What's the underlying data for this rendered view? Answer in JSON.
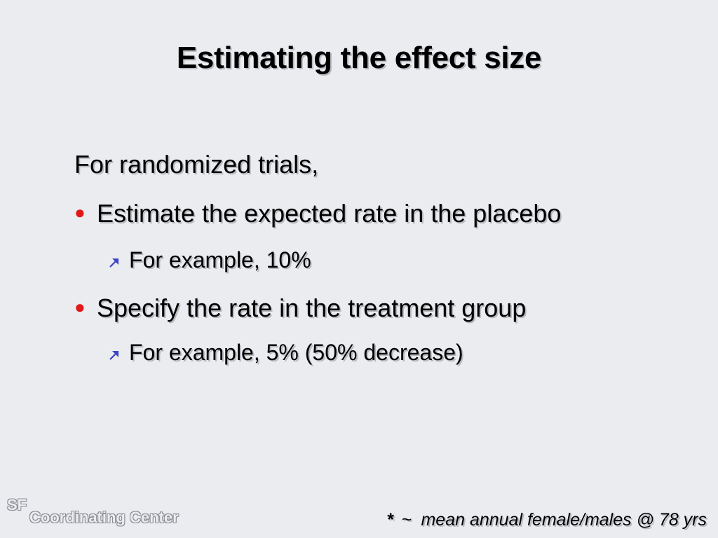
{
  "slide": {
    "title": "Estimating the effect size",
    "intro": "For randomized trials,",
    "bullets": [
      {
        "text": "Estimate the expected rate in the placebo",
        "sub": "For example, 10%"
      },
      {
        "text": "Specify the rate in the treatment group",
        "sub": "For example, 5%  (50% decrease)"
      }
    ],
    "logo": {
      "line1": "SF",
      "line2": "Coordinating Center"
    },
    "footnote": {
      "star": "*",
      "tilde": "~",
      "text": "mean annual female/males @ 78 yrs"
    }
  },
  "colors": {
    "background": "#ebecef",
    "bullet": "#e01818",
    "sub_arrow": "#3b44c8"
  },
  "icons": {
    "bullet": "red-dot-bullet-icon",
    "sub_bullet": "northeast-arrow-icon"
  }
}
